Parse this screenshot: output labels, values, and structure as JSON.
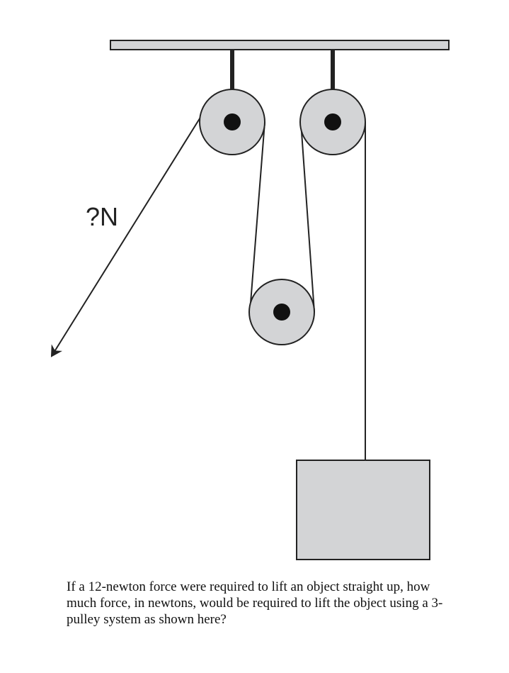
{
  "diagram": {
    "force_label": "?N",
    "colors": {
      "pulley_fill": "#d3d4d6",
      "block_fill": "#d3d4d6",
      "beam_fill": "#d3d4d6",
      "outline": "#222222",
      "rope": "#222222",
      "axle": "#111111"
    }
  },
  "question": {
    "text": "If a 12-newton force were required to lift an object straight up, how much force, in newtons, would be required to lift the object using a 3-pulley system as shown here?"
  }
}
